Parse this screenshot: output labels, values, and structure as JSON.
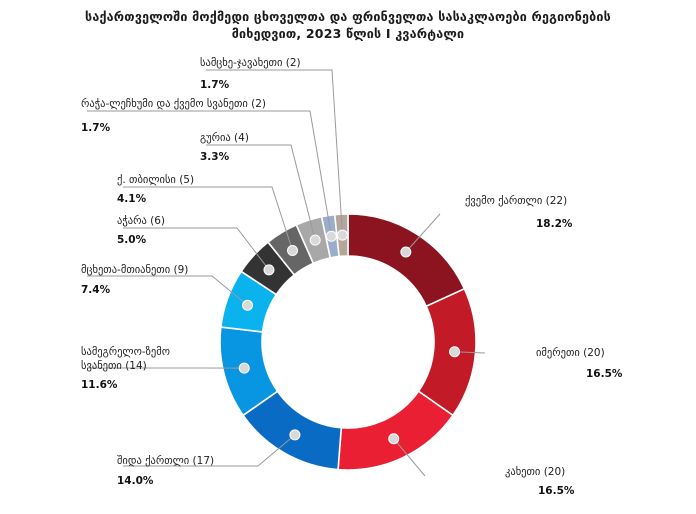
{
  "chart_data": {
    "type": "pie",
    "title_line1": "საქართველოში მოქმედი ცხოველთა და ფრინველთა სასაკლაოები რეგიონების",
    "title_line2": "მიხედვით, 2023 წლის I კვარტალი",
    "slices": [
      {
        "name": "ქვემო ქართლი (22)",
        "count": 22,
        "percent": "18.2%",
        "value": 18.2,
        "color": "#8b1420"
      },
      {
        "name": "იმერეთი (20)",
        "count": 20,
        "percent": "16.5%",
        "value": 16.5,
        "color": "#c21a26"
      },
      {
        "name": "კახეთი (20)",
        "count": 20,
        "percent": "16.5%",
        "value": 16.5,
        "color": "#ea1f33"
      },
      {
        "name": "შიდა ქართლი (17)",
        "count": 17,
        "percent": "14.0%",
        "value": 14.0,
        "color": "#0a6bc4"
      },
      {
        "name": "სამეგრელო-ზემო სვანეთი (14)",
        "count": 14,
        "percent": "11.6%",
        "value": 11.6,
        "color": "#0895e2"
      },
      {
        "name": "მცხეთა-მთიანეთი (9)",
        "count": 9,
        "percent": "7.4%",
        "value": 7.4,
        "color": "#0bb3ee"
      },
      {
        "name": "აჭარა (6)",
        "count": 6,
        "percent": "5.0%",
        "value": 5.0,
        "color": "#333333"
      },
      {
        "name": "ქ. თბილისი (5)",
        "count": 5,
        "percent": "4.1%",
        "value": 4.1,
        "color": "#666666"
      },
      {
        "name": "გურია (4)",
        "count": 4,
        "percent": "3.3%",
        "value": 3.3,
        "color": "#a8a8a8"
      },
      {
        "name": "რაჭა-ლეჩხუმი და ქვემო სვანეთი (2)",
        "count": 2,
        "percent": "1.7%",
        "value": 1.7,
        "color": "#9aaecc"
      },
      {
        "name": "სამცხე-ჯავახეთი (2)",
        "count": 2,
        "percent": "1.7%",
        "value": 1.7,
        "color": "#b5a69c"
      }
    ]
  }
}
